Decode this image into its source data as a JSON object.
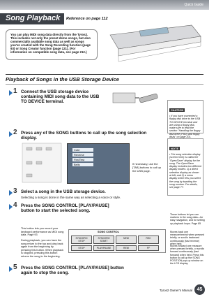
{
  "header": {
    "section": "Quick Guide",
    "title": "Song Playback",
    "reference": "Reference on page 112"
  },
  "intro": "You can play MIDI song data directly from the Tyros2. This includes not only the preset demo songs, but also commercially available song data as well as songs you've created with the Song Recording function (page 93) or Song Creator function (page 121). (For information on compatible song data, see page 212.)",
  "section_heading": "Playback of Songs in the USB Storage Device",
  "steps": [
    {
      "number": "1",
      "text": "Connect the USB storage device containing MIDI song data to the USB TO DEVICE terminal."
    },
    {
      "number": "2",
      "text": "Press any of the SONG buttons to call up the song selection display."
    },
    {
      "number": "3",
      "text": "Select a song in the USB storage device.",
      "detail": "Selecting a song is done in the same way as selecting a voice or style."
    },
    {
      "number": "4",
      "text": "Press the SONG CONTROL [PLAY/PAUSE] button to start the selected song."
    },
    {
      "number": "5",
      "text": "Press the SONG CONTROL [PLAY/PAUSE] button again to stop the song."
    }
  ],
  "caution": {
    "label": "CAUTION",
    "text": "• If you have connected a floppy disk drive to the USB TO DEVICE terminal and are using a floppy disk, make sure to read the section \"Handling the floppy disk drive (FDD) and floppy disks\" on page 201."
  },
  "screen": {
    "tab_note": "If necessary, use the [TAB] buttons to call up the USB page.",
    "items": [
      "Cute",
      "Reverse",
      "FirstTest",
      "Bells"
    ]
  },
  "note": {
    "label": "NOTE",
    "text": "• The song selection display (screen here) is called the \"Open/Save\" display for the song. The Open/Save display includes two different display modes: 1) a direct selection display as shown at left; and 2) a menu display which lets you select the song by inputting the song number. For details, see page 77."
  },
  "panel": {
    "title": "SONG CONTROL",
    "buttons": [
      "SYNCHRO STOP",
      "SYNCHRO START",
      "NEW",
      "REC",
      "STOP",
      "PLAY/PAUSE",
      "REW",
      "FF"
    ],
    "left_notes": [
      "This button lets you record your keyboard performance as MIDI song data. Page 93",
      "During playback, you can have the song return to the top and play back again from the beginning by pressing this button. When playback is stopped, pressing this button returns the song to the beginning."
    ],
    "right_notes": [
      "These buttons let you use markers in the song data—for easy navigation, and for setting up playback loops. Page 85",
      "Moves back one measure/rewind when pressed briefly, or scrolls backward continuously (fast reverse) when held.",
      "Moves forward one measure when pressed briefly, or scrolls forward continuously (fast forward) when held. Press this button to call up the SONG POSITION pop-up window on the LCD display."
    ]
  },
  "footer": {
    "manual": "Tyros2 Owner's Manual",
    "page": "45"
  }
}
